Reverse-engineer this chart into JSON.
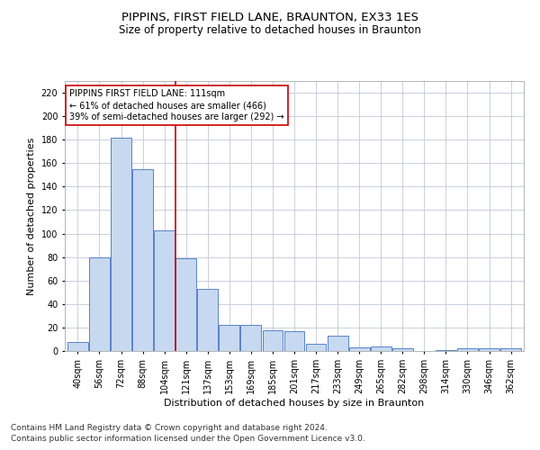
{
  "title": "PIPPINS, FIRST FIELD LANE, BRAUNTON, EX33 1ES",
  "subtitle": "Size of property relative to detached houses in Braunton",
  "xlabel": "Distribution of detached houses by size in Braunton",
  "ylabel": "Number of detached properties",
  "categories": [
    "40sqm",
    "56sqm",
    "72sqm",
    "88sqm",
    "104sqm",
    "121sqm",
    "137sqm",
    "153sqm",
    "169sqm",
    "185sqm",
    "201sqm",
    "217sqm",
    "233sqm",
    "249sqm",
    "265sqm",
    "282sqm",
    "298sqm",
    "314sqm",
    "330sqm",
    "346sqm",
    "362sqm"
  ],
  "values": [
    8,
    80,
    182,
    155,
    103,
    79,
    53,
    22,
    22,
    18,
    17,
    6,
    13,
    3,
    4,
    2,
    0,
    1,
    2,
    2,
    2
  ],
  "bar_color": "#c6d9f0",
  "bar_edge_color": "#4472c4",
  "vline_x_index": 4.5,
  "vline_color": "#cc0000",
  "annotation_line1": "PIPPINS FIRST FIELD LANE: 111sqm",
  "annotation_line2": "← 61% of detached houses are smaller (466)",
  "annotation_line3": "39% of semi-detached houses are larger (292) →",
  "annotation_box_color": "#ffffff",
  "annotation_box_edge_color": "#cc0000",
  "ylim": [
    0,
    230
  ],
  "yticks": [
    0,
    20,
    40,
    60,
    80,
    100,
    120,
    140,
    160,
    180,
    200,
    220
  ],
  "footer_line1": "Contains HM Land Registry data © Crown copyright and database right 2024.",
  "footer_line2": "Contains public sector information licensed under the Open Government Licence v3.0.",
  "title_fontsize": 9.5,
  "subtitle_fontsize": 8.5,
  "axis_label_fontsize": 8,
  "tick_fontsize": 7,
  "annotation_fontsize": 7,
  "footer_fontsize": 6.5,
  "background_color": "#ffffff",
  "grid_color": "#c0c8d8"
}
